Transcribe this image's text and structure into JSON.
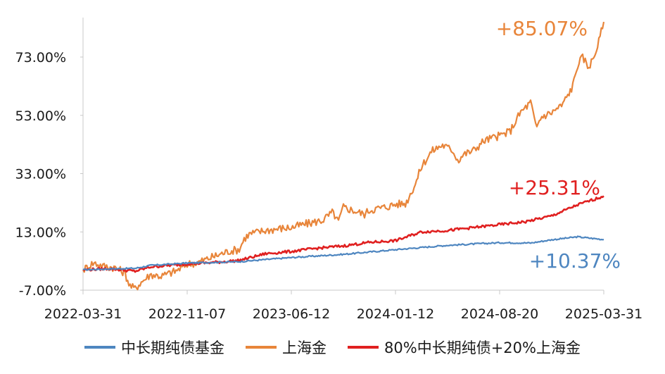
{
  "chart_data": {
    "type": "line",
    "title": "",
    "xlabel": "",
    "ylabel": "",
    "ylim": [
      -7,
      85.07
    ],
    "y_ticks": [
      "73.00%",
      "53.00%",
      "33.00%",
      "13.00%",
      "-7.00%"
    ],
    "y_tick_values": [
      73,
      53,
      33,
      13,
      -7
    ],
    "x_ticks": [
      "2022-03-31",
      "2022-11-07",
      "2023-06-12",
      "2024-01-12",
      "2024-08-20",
      "2025-03-31"
    ],
    "x_tick_values": [
      0,
      0.2,
      0.4,
      0.6,
      0.8,
      1.0
    ],
    "series": [
      {
        "name": "中长期纯债基金",
        "color": "#4e86c0",
        "final_label": "+10.37%",
        "points": [
          [
            0,
            0
          ],
          [
            0.05,
            0.3
          ],
          [
            0.1,
            0.5
          ],
          [
            0.13,
            1.5
          ],
          [
            0.2,
            2.3
          ],
          [
            0.3,
            2.8
          ],
          [
            0.4,
            4.2
          ],
          [
            0.5,
            5.3
          ],
          [
            0.6,
            6.9
          ],
          [
            0.7,
            8.4
          ],
          [
            0.8,
            9.3
          ],
          [
            0.86,
            9.2
          ],
          [
            0.9,
            10.3
          ],
          [
            0.95,
            11.3
          ],
          [
            1.0,
            10.37
          ]
        ]
      },
      {
        "name": "上海金",
        "color": "#e8853a",
        "final_label": "+85.07%",
        "points": [
          [
            0,
            0
          ],
          [
            0.02,
            2.4
          ],
          [
            0.04,
            1.2
          ],
          [
            0.06,
            0.8
          ],
          [
            0.08,
            -1.0
          ],
          [
            0.09,
            -5.5
          ],
          [
            0.1,
            -6.5
          ],
          [
            0.11,
            -4.5
          ],
          [
            0.13,
            -1.6
          ],
          [
            0.15,
            -2.2
          ],
          [
            0.18,
            -0.3
          ],
          [
            0.2,
            2.0
          ],
          [
            0.22,
            2.5
          ],
          [
            0.25,
            4.5
          ],
          [
            0.28,
            6.4
          ],
          [
            0.3,
            7.0
          ],
          [
            0.31,
            10.8
          ],
          [
            0.32,
            12.3
          ],
          [
            0.35,
            13.5
          ],
          [
            0.38,
            14.2
          ],
          [
            0.4,
            14.5
          ],
          [
            0.43,
            15.8
          ],
          [
            0.46,
            17.0
          ],
          [
            0.48,
            19.8
          ],
          [
            0.49,
            16.3
          ],
          [
            0.5,
            21.5
          ],
          [
            0.52,
            20.3
          ],
          [
            0.54,
            19.0
          ],
          [
            0.55,
            20.5
          ],
          [
            0.58,
            21.5
          ],
          [
            0.6,
            22.5
          ],
          [
            0.62,
            22.8
          ],
          [
            0.64,
            30.3
          ],
          [
            0.65,
            35.5
          ],
          [
            0.67,
            40.8
          ],
          [
            0.69,
            42.8
          ],
          [
            0.71,
            41.0
          ],
          [
            0.72,
            37.5
          ],
          [
            0.73,
            39.5
          ],
          [
            0.75,
            41.0
          ],
          [
            0.77,
            44.3
          ],
          [
            0.8,
            46.0
          ],
          [
            0.82,
            47.5
          ],
          [
            0.84,
            54.0
          ],
          [
            0.86,
            57.5
          ],
          [
            0.87,
            48.5
          ],
          [
            0.88,
            52.5
          ],
          [
            0.9,
            54.0
          ],
          [
            0.92,
            56.5
          ],
          [
            0.94,
            62.8
          ],
          [
            0.95,
            70.5
          ],
          [
            0.96,
            73.0
          ],
          [
            0.97,
            69.5
          ],
          [
            0.98,
            72.5
          ],
          [
            0.99,
            78.0
          ],
          [
            1.0,
            85.07
          ]
        ]
      },
      {
        "name": "80%中长期纯债+20%上海金",
        "color": "#e02020",
        "final_label": "+25.31%",
        "points": [
          [
            0,
            0
          ],
          [
            0.05,
            0.4
          ],
          [
            0.1,
            -0.5
          ],
          [
            0.13,
            1.0
          ],
          [
            0.2,
            2.0
          ],
          [
            0.25,
            2.5
          ],
          [
            0.3,
            3.2
          ],
          [
            0.35,
            5.5
          ],
          [
            0.4,
            6.3
          ],
          [
            0.45,
            7.4
          ],
          [
            0.5,
            8.2
          ],
          [
            0.55,
            9.4
          ],
          [
            0.6,
            10.0
          ],
          [
            0.65,
            13.0
          ],
          [
            0.7,
            13.5
          ],
          [
            0.75,
            14.5
          ],
          [
            0.8,
            15.5
          ],
          [
            0.85,
            16.5
          ],
          [
            0.9,
            18.5
          ],
          [
            0.95,
            22.3
          ],
          [
            1.0,
            25.31
          ]
        ]
      }
    ]
  }
}
